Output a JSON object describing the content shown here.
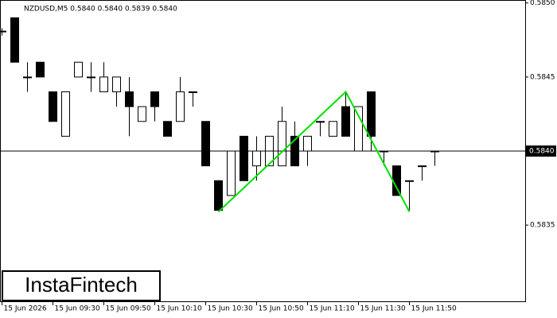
{
  "chart_data": {
    "type": "candlestick",
    "title": "NZDUSD,M5  0.5840 0.5840 0.5839 0.5840",
    "categories": [
      "15 Jun 2026",
      null,
      null,
      null,
      "15 Jun 09:30",
      null,
      null,
      null,
      "15 Jun 09:50",
      null,
      null,
      null,
      "15 Jun 10:10",
      null,
      null,
      null,
      "15 Jun 10:30",
      null,
      null,
      null,
      "15 Jun 10:50",
      null,
      null,
      null,
      "15 Jun 11:10",
      null,
      null,
      null,
      "15 Jun 11:30",
      null,
      null,
      null,
      "15 Jun 11:50",
      null,
      null
    ],
    "open": [
      0.58481,
      0.5849,
      0.5845,
      0.5846,
      0.5844,
      0.5841,
      0.5845,
      0.5845,
      0.5844,
      0.5844,
      0.5844,
      0.5842,
      0.5844,
      0.5842,
      0.5842,
      0.5844,
      0.5842,
      0.5838,
      0.5837,
      0.5841,
      0.5839,
      0.5839,
      0.5839,
      0.5841,
      0.584,
      0.5842,
      0.5841,
      0.5843,
      0.584,
      0.5844,
      0.584,
      0.5839,
      0.5838,
      0.5839,
      0.584
    ],
    "high": [
      0.58483,
      0.5849,
      0.5846,
      0.5846,
      0.5844,
      0.5844,
      0.5846,
      0.5846,
      0.5846,
      0.5845,
      0.5845,
      0.5843,
      0.5844,
      0.5842,
      0.5845,
      0.5844,
      0.5842,
      0.5838,
      0.584,
      0.5841,
      0.5841,
      0.5841,
      0.5843,
      0.5842,
      0.5841,
      0.5842,
      0.5842,
      0.5844,
      0.5843,
      0.5844,
      0.584,
      0.5839,
      0.5838,
      0.5839,
      0.584
    ],
    "low": [
      0.58478,
      0.5846,
      0.5844,
      0.5845,
      0.5842,
      0.5841,
      0.5845,
      0.5844,
      0.5844,
      0.5843,
      0.5841,
      0.5842,
      0.5842,
      0.5841,
      0.5842,
      0.5843,
      0.5839,
      0.5836,
      0.5837,
      0.5838,
      0.5838,
      0.5839,
      0.5839,
      0.5839,
      0.5839,
      0.5841,
      0.5841,
      0.5841,
      0.584,
      0.584,
      0.5839,
      0.5837,
      0.5836,
      0.5838,
      0.5839
    ],
    "close": [
      0.58481,
      0.5846,
      0.5845,
      0.5845,
      0.5842,
      0.5844,
      0.5846,
      0.5845,
      0.5845,
      0.5845,
      0.5843,
      0.5843,
      0.5843,
      0.5841,
      0.5844,
      0.5844,
      0.5839,
      0.5836,
      0.584,
      0.5838,
      0.584,
      0.5841,
      0.5842,
      0.5839,
      0.5841,
      0.5842,
      0.5842,
      0.5841,
      0.5843,
      0.5841,
      0.584,
      0.5837,
      0.5838,
      0.5839,
      0.584
    ],
    "up_color": "#ffffff",
    "down_color": "#000000",
    "ylim": [
      0.58298,
      0.58502
    ],
    "yticks": [
      0.5835,
      {
        "value": 0.5845,
        "label": "0.5845"
      },
      {
        "value": 0.585,
        "label": "0.5850"
      }
    ],
    "current_price": {
      "value": 0.584,
      "label": "0.5840"
    },
    "pattern": {
      "color": "#00e000",
      "x": [
        17,
        27,
        32
      ],
      "values": [
        0.58359,
        0.5844,
        0.58359
      ]
    },
    "logo": "InstaFintech"
  }
}
